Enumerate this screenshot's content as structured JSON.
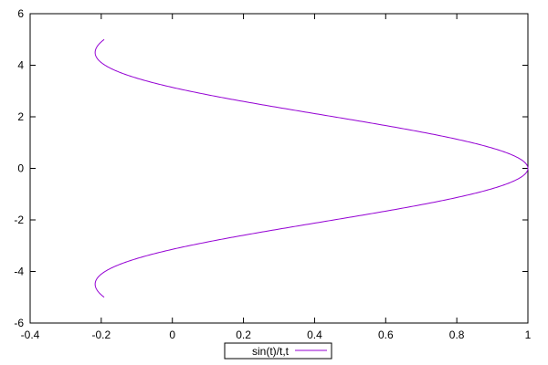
{
  "chart_data": {
    "type": "line",
    "title": "",
    "xlabel": "",
    "ylabel": "",
    "xlim": [
      -0.4,
      1
    ],
    "ylim": [
      -6,
      6
    ],
    "x_ticks": [
      "-0.4",
      "-0.2",
      "0",
      "0.2",
      "0.4",
      "0.6",
      "0.8",
      "1"
    ],
    "y_ticks": [
      "-6",
      "-4",
      "-2",
      "0",
      "2",
      "4",
      "6"
    ],
    "grid": false,
    "legend_position": "bottom-center",
    "series": [
      {
        "name": "sin(t)/t,t",
        "color": "#9400d3",
        "parametric": true,
        "t_range": [
          -5,
          5
        ],
        "points": [
          {
            "x": -0.192,
            "y": -5.0
          },
          {
            "x": -0.217,
            "y": -4.5
          },
          {
            "x": -0.189,
            "y": -4.0
          },
          {
            "x": -0.105,
            "y": -3.5
          },
          {
            "x": 0.047,
            "y": -3.0
          },
          {
            "x": 0.239,
            "y": -2.5
          },
          {
            "x": 0.455,
            "y": -2.0
          },
          {
            "x": 0.665,
            "y": -1.5
          },
          {
            "x": 0.841,
            "y": -1.0
          },
          {
            "x": 0.959,
            "y": -0.5
          },
          {
            "x": 1.0,
            "y": 0.0
          },
          {
            "x": 0.959,
            "y": 0.5
          },
          {
            "x": 0.841,
            "y": 1.0
          },
          {
            "x": 0.665,
            "y": 1.5
          },
          {
            "x": 0.455,
            "y": 2.0
          },
          {
            "x": 0.239,
            "y": 2.5
          },
          {
            "x": 0.047,
            "y": 3.0
          },
          {
            "x": -0.105,
            "y": 3.5
          },
          {
            "x": -0.189,
            "y": 4.0
          },
          {
            "x": -0.217,
            "y": 4.5
          },
          {
            "x": -0.192,
            "y": 5.0
          }
        ]
      }
    ]
  }
}
